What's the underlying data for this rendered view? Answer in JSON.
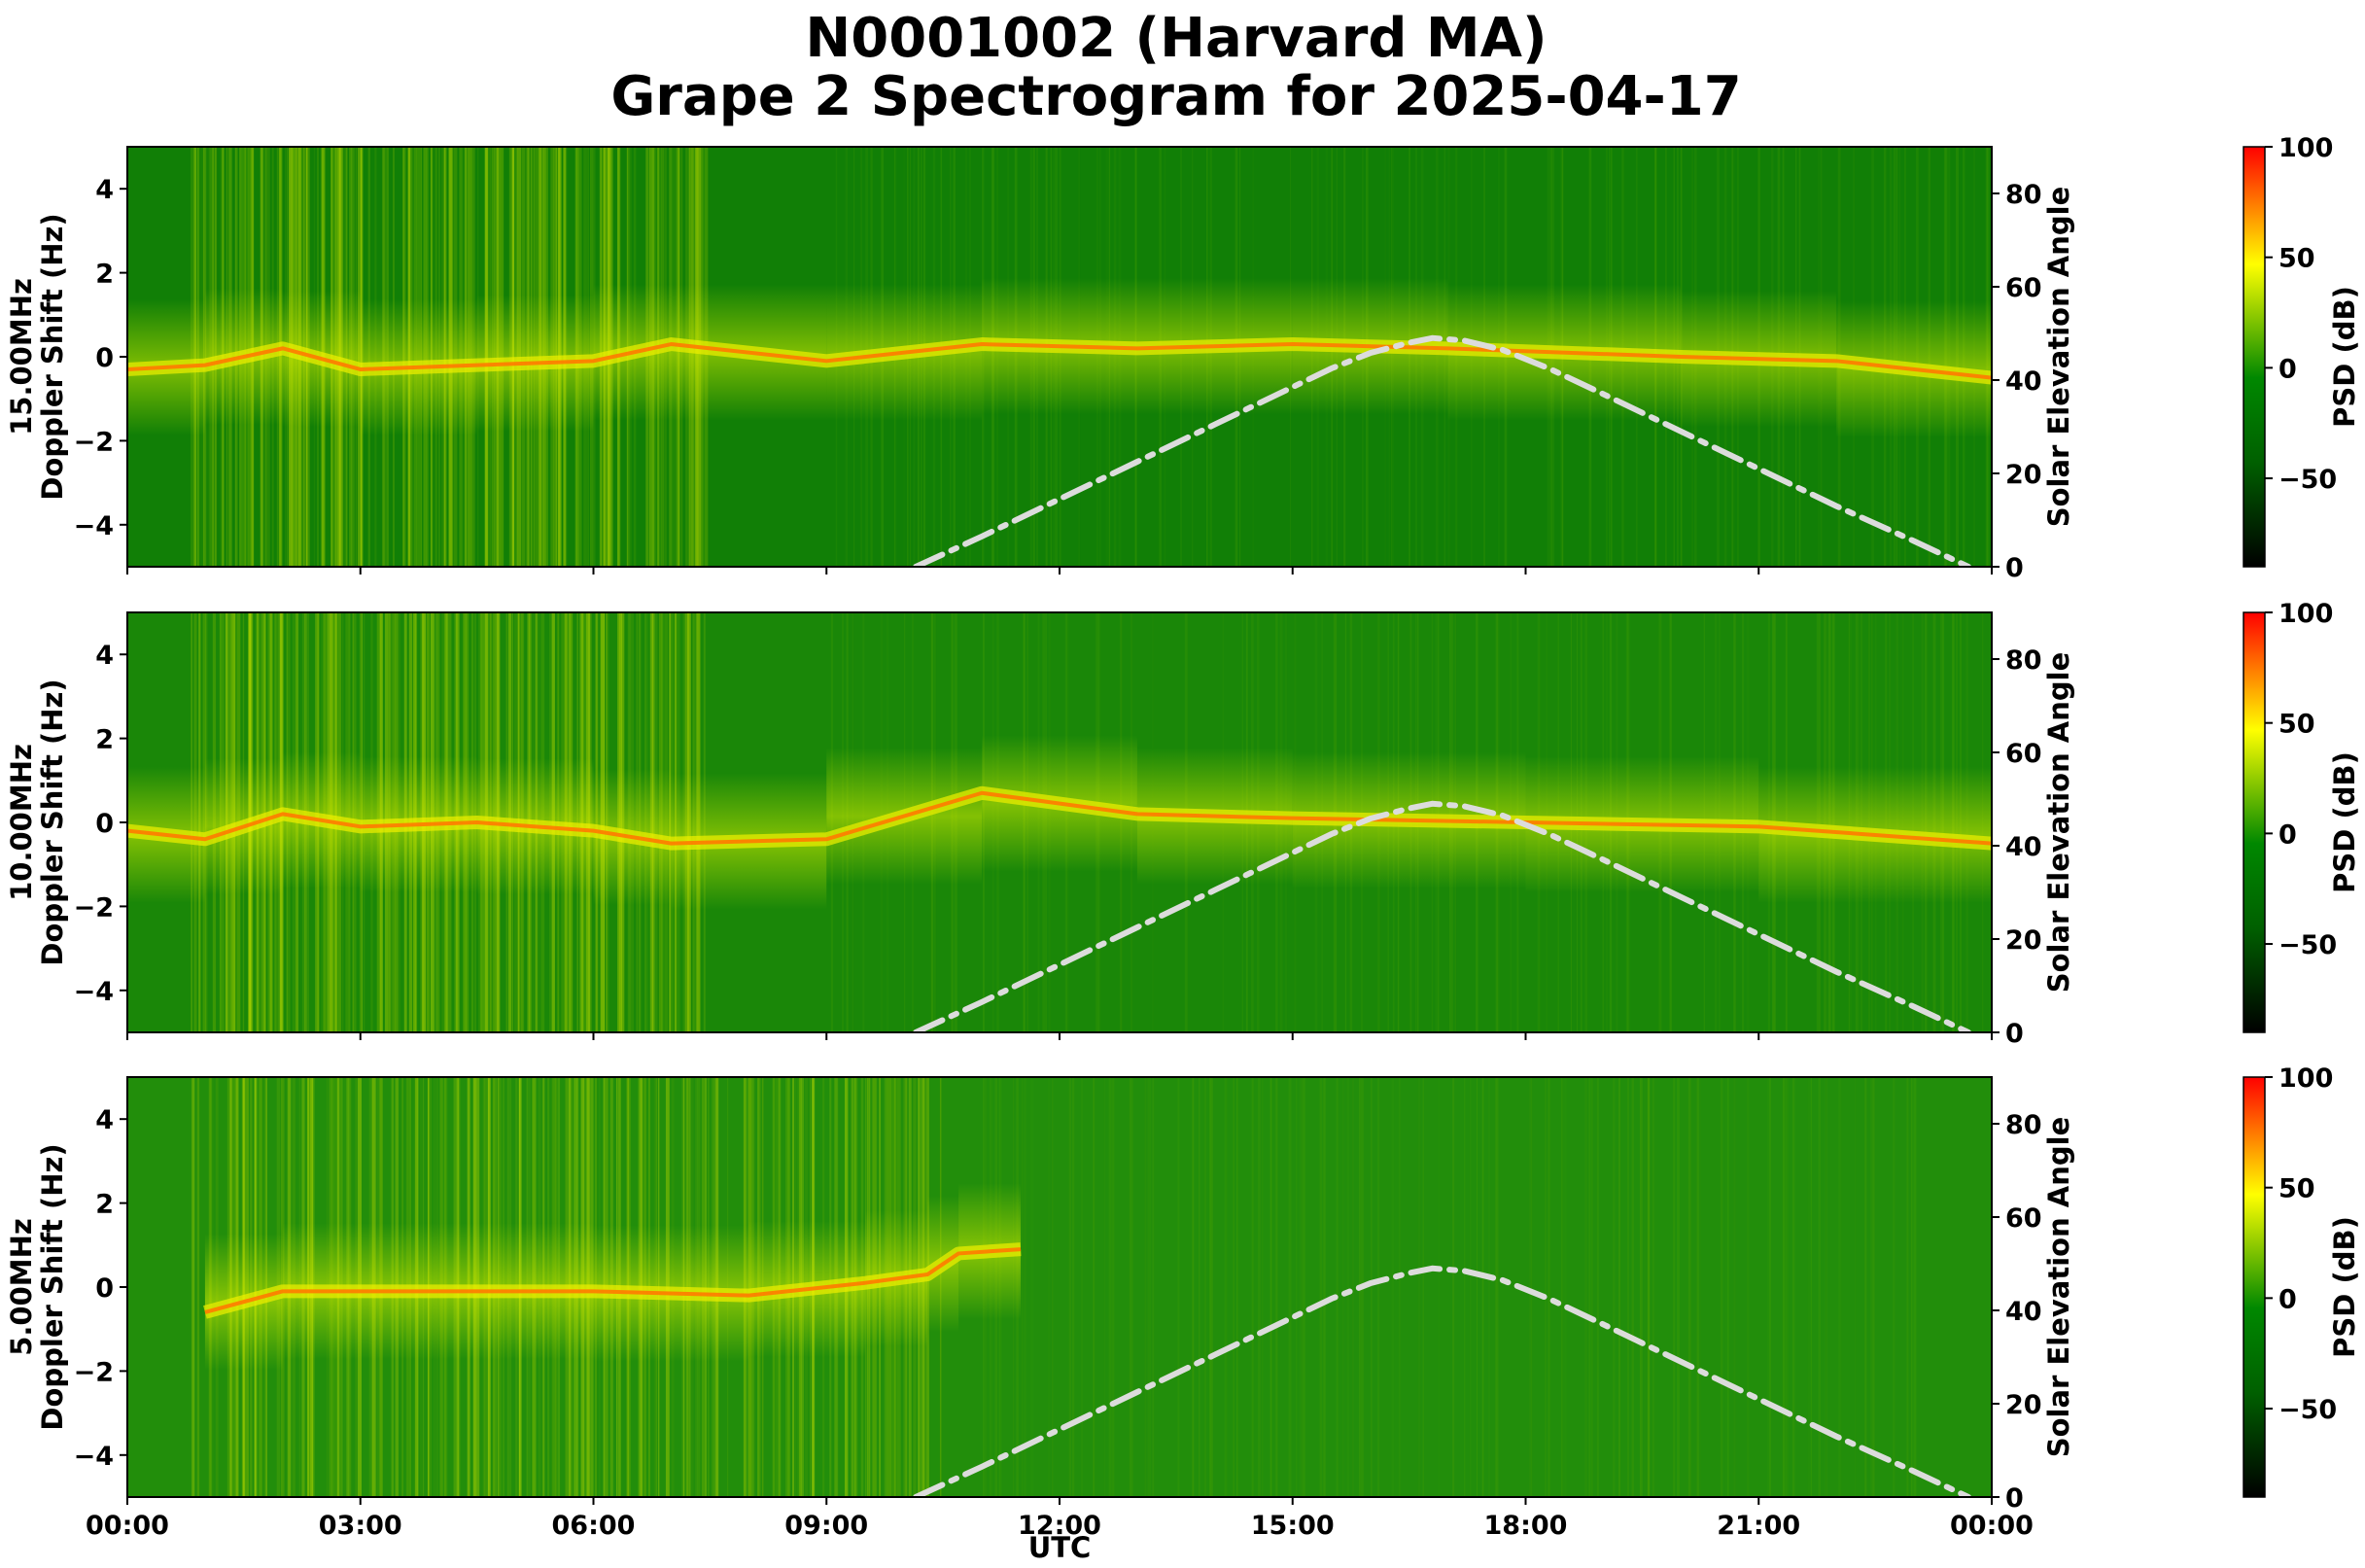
{
  "title_line1": "N0001002 (Harvard MA)",
  "title_line2": "Grape 2 Spectrogram for 2025-04-17",
  "chart_data": {
    "type": "heatmap",
    "x_label": "UTC",
    "x_range_hours": [
      0,
      24
    ],
    "x_ticks": [
      {
        "hour": 0,
        "label": "00:00"
      },
      {
        "hour": 3,
        "label": "03:00"
      },
      {
        "hour": 6,
        "label": "06:00"
      },
      {
        "hour": 9,
        "label": "09:00"
      },
      {
        "hour": 12,
        "label": "12:00"
      },
      {
        "hour": 15,
        "label": "15:00"
      },
      {
        "hour": 18,
        "label": "18:00"
      },
      {
        "hour": 21,
        "label": "21:00"
      },
      {
        "hour": 24,
        "label": "00:00"
      }
    ],
    "y_left": {
      "range": [
        -5,
        5
      ],
      "ticks": [
        {
          "value": 4,
          "label": "4"
        },
        {
          "value": 2,
          "label": "2"
        },
        {
          "value": 0,
          "label": "0"
        },
        {
          "value": -2,
          "label": "−2"
        },
        {
          "value": -4,
          "label": "−4"
        }
      ]
    },
    "y_right": {
      "label": "Solar Elevation Angle",
      "range": [
        0,
        90
      ],
      "ticks": [
        {
          "value": 0,
          "label": "0"
        },
        {
          "value": 20,
          "label": "20"
        },
        {
          "value": 40,
          "label": "40"
        },
        {
          "value": 60,
          "label": "60"
        },
        {
          "value": 80,
          "label": "80"
        }
      ]
    },
    "colorbar": {
      "label": "PSD (dB)",
      "range": [
        -90,
        100
      ],
      "colors": [
        "#000000",
        "#007a00",
        "#ffff00",
        "#ff0000"
      ],
      "ticks": [
        {
          "value": 100,
          "label": "100"
        },
        {
          "value": 50,
          "label": "50"
        },
        {
          "value": 0,
          "label": "0"
        },
        {
          "value": -50,
          "label": "−50"
        }
      ]
    },
    "solar_elevation": {
      "color": "#dcdcdc",
      "style": "dash-dot",
      "points": [
        [
          10.15,
          0
        ],
        [
          11.0,
          6.5
        ],
        [
          12.0,
          14.5
        ],
        [
          13.0,
          22.5
        ],
        [
          14.0,
          30.5
        ],
        [
          15.0,
          38.5
        ],
        [
          15.5,
          42.5
        ],
        [
          16.0,
          45.8
        ],
        [
          16.5,
          48.0
        ],
        [
          16.8,
          49.0
        ],
        [
          17.2,
          48.5
        ],
        [
          17.7,
          46.5
        ],
        [
          18.3,
          42.5
        ],
        [
          19.0,
          37.0
        ],
        [
          20.0,
          29.0
        ],
        [
          21.0,
          21.0
        ],
        [
          22.0,
          13.0
        ],
        [
          23.0,
          5.5
        ],
        [
          23.7,
          0
        ]
      ]
    },
    "panels": [
      {
        "id": "15mhz",
        "freq_label": "15.00MHz",
        "y_label": "Doppler Shift (Hz)",
        "background_psd": -10,
        "trace": [
          [
            0,
            -0.3
          ],
          [
            1,
            -0.2
          ],
          [
            2,
            0.2
          ],
          [
            3,
            -0.3
          ],
          [
            4.5,
            -0.2
          ],
          [
            6,
            -0.1
          ],
          [
            7,
            0.3
          ],
          [
            9,
            -0.1
          ],
          [
            11,
            0.3
          ],
          [
            13,
            0.2
          ],
          [
            15,
            0.3
          ],
          [
            17,
            0.2
          ],
          [
            20,
            0.0
          ],
          [
            22,
            -0.1
          ],
          [
            24,
            -0.5
          ]
        ]
      },
      {
        "id": "10mhz",
        "freq_label": "10.00MHz",
        "y_label": "Doppler Shift (Hz)",
        "background_psd": -5,
        "trace": [
          [
            0,
            -0.2
          ],
          [
            1,
            -0.4
          ],
          [
            2,
            0.2
          ],
          [
            3,
            -0.1
          ],
          [
            4.5,
            0.0
          ],
          [
            6,
            -0.2
          ],
          [
            7,
            -0.5
          ],
          [
            9,
            -0.4
          ],
          [
            11,
            0.7
          ],
          [
            13,
            0.2
          ],
          [
            15,
            0.1
          ],
          [
            18,
            0.0
          ],
          [
            21,
            -0.1
          ],
          [
            24,
            -0.5
          ]
        ]
      },
      {
        "id": "5mhz",
        "freq_label": "5.00MHz",
        "y_label": "Doppler Shift (Hz)",
        "background_psd": 0,
        "trace": [
          [
            1,
            -0.6
          ],
          [
            2,
            -0.1
          ],
          [
            4,
            -0.1
          ],
          [
            6,
            -0.1
          ],
          [
            8,
            -0.2
          ],
          [
            9.5,
            0.1
          ],
          [
            10.3,
            0.3
          ],
          [
            10.7,
            0.8
          ],
          [
            11.5,
            0.9
          ]
        ]
      }
    ]
  }
}
